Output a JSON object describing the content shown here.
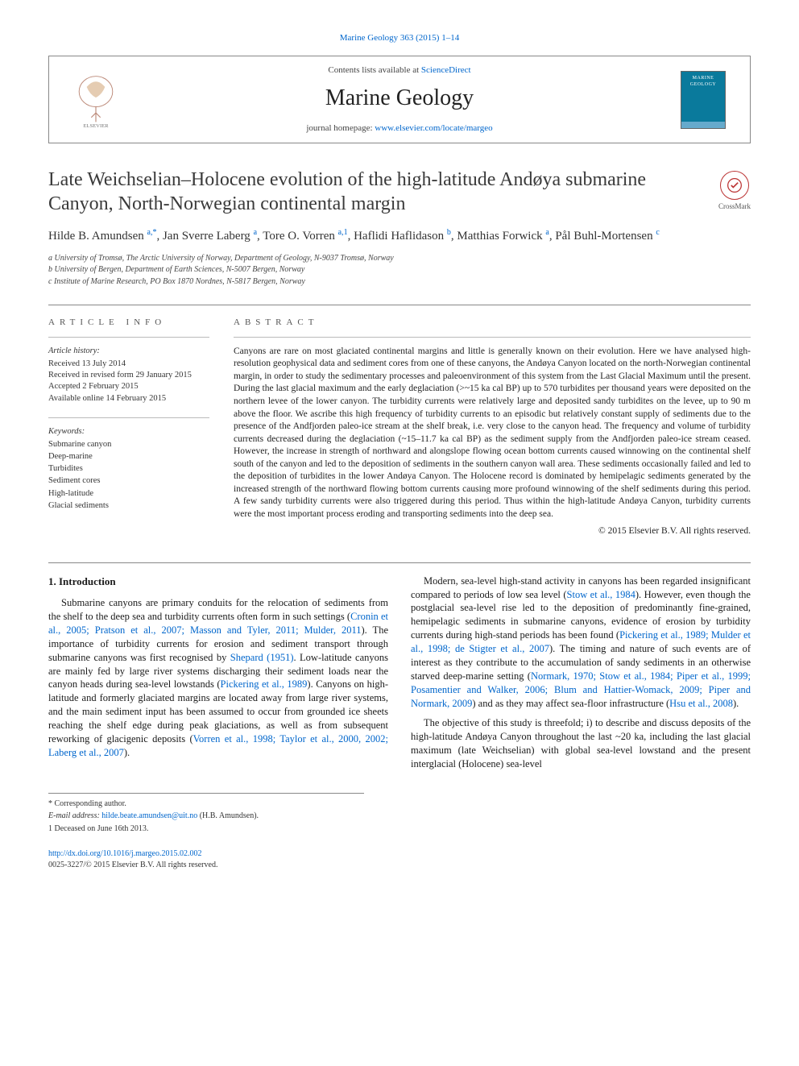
{
  "citation": "Marine Geology 363 (2015) 1–14",
  "header": {
    "contents_prefix": "Contents lists available at ",
    "contents_link": "ScienceDirect",
    "journal": "Marine Geology",
    "homepage_prefix": "journal homepage: ",
    "homepage_link": "www.elsevier.com/locate/margeo",
    "cover_text": "MARINE GEOLOGY"
  },
  "crossmark_label": "CrossMark",
  "title": "Late Weichselian–Holocene evolution of the high-latitude Andøya submarine Canyon, North-Norwegian continental margin",
  "authors_html_parts": [
    {
      "name": "Hilde B. Amundsen ",
      "sup": "a,*"
    },
    {
      "name": ", Jan Sverre Laberg ",
      "sup": "a"
    },
    {
      "name": ", Tore O. Vorren ",
      "sup": "a,1"
    },
    {
      "name": ", Haflidi Haflidason ",
      "sup": "b"
    },
    {
      "name": ", Matthias Forwick ",
      "sup": "a"
    },
    {
      "name": ", Pål Buhl-Mortensen ",
      "sup": "c"
    }
  ],
  "affiliations": [
    "a University of Tromsø, The Arctic University of Norway, Department of Geology, N-9037 Tromsø, Norway",
    "b University of Bergen, Department of Earth Sciences, N-5007 Bergen, Norway",
    "c Institute of Marine Research, PO Box 1870 Nordnes, N-5817 Bergen, Norway"
  ],
  "info": {
    "heading": "article info",
    "history_label": "Article history:",
    "history": [
      "Received 13 July 2014",
      "Received in revised form 29 January 2015",
      "Accepted 2 February 2015",
      "Available online 14 February 2015"
    ],
    "keywords_label": "Keywords:",
    "keywords": [
      "Submarine canyon",
      "Deep-marine",
      "Turbidites",
      "Sediment cores",
      "High-latitude",
      "Glacial sediments"
    ]
  },
  "abstract": {
    "heading": "abstract",
    "text": "Canyons are rare on most glaciated continental margins and little is generally known on their evolution. Here we have analysed high-resolution geophysical data and sediment cores from one of these canyons, the Andøya Canyon located on the north-Norwegian continental margin, in order to study the sedimentary processes and paleoenvironment of this system from the Last Glacial Maximum until the present. During the last glacial maximum and the early deglaciation (>~15 ka cal BP) up to 570 turbidites per thousand years were deposited on the northern levee of the lower canyon. The turbidity currents were relatively large and deposited sandy turbidites on the levee, up to 90 m above the floor. We ascribe this high frequency of turbidity currents to an episodic but relatively constant supply of sediments due to the presence of the Andfjorden paleo-ice stream at the shelf break, i.e. very close to the canyon head. The frequency and volume of turbidity currents decreased during the deglaciation (~15–11.7 ka cal BP) as the sediment supply from the Andfjorden paleo-ice stream ceased. However, the increase in strength of northward and alongslope flowing ocean bottom currents caused winnowing on the continental shelf south of the canyon and led to the deposition of sediments in the southern canyon wall area. These sediments occasionally failed and led to the deposition of turbidites in the lower Andøya Canyon. The Holocene record is dominated by hemipelagic sediments generated by the increased strength of the northward flowing bottom currents causing more profound winnowing of the shelf sediments during this period. A few sandy turbidity currents were also triggered during this period. Thus within the high-latitude Andøya Canyon, turbidity currents were the most important process eroding and transporting sediments into the deep sea.",
    "copyright": "© 2015 Elsevier B.V. All rights reserved."
  },
  "body": {
    "section_title": "1. Introduction",
    "p1_a": "Submarine canyons are primary conduits for the relocation of sediments from the shelf to the deep sea and turbidity currents often form in such settings (",
    "p1_link1": "Cronin et al., 2005; Pratson et al., 2007; Masson and Tyler, 2011; Mulder, 2011",
    "p1_b": "). The importance of turbidity currents for erosion and sediment transport through submarine canyons was first recognised by ",
    "p1_link2": "Shepard (1951)",
    "p1_c": ". Low-latitude canyons are mainly fed by large river systems discharging their sediment loads near the canyon heads during sea-level lowstands (",
    "p1_link3": "Pickering et al., 1989",
    "p1_d": "). Canyons on high-latitude and formerly glaciated margins are located away from large river systems, and the main sediment input has been assumed to occur from grounded ice sheets reaching the shelf edge during peak glaciations, as well as from subsequent reworking of glacigenic deposits (",
    "p1_link4": "Vorren et al., 1998; Taylor et al., 2000, 2002; Laberg et al., 2007",
    "p1_e": ").",
    "p2_a": "Modern, sea-level high-stand activity in canyons has been regarded insignificant compared to periods of low sea level (",
    "p2_link1": "Stow et al., 1984",
    "p2_b": "). However, even though the postglacial sea-level rise led to the deposition of predominantly fine-grained, hemipelagic sediments in submarine canyons, evidence of erosion by turbidity currents during high-stand periods has been found (",
    "p2_link2": "Pickering et al., 1989; Mulder et al., 1998; de Stigter et al., 2007",
    "p2_c": "). The timing and nature of such events are of interest as they contribute to the accumulation of sandy sediments in an otherwise starved deep-marine setting (",
    "p2_link3": "Normark, 1970; Stow et al., 1984; Piper et al., 1999; Posamentier and Walker, 2006; Blum and Hattier-Womack, 2009; Piper and Normark, 2009",
    "p2_d": ") and as they may affect sea-floor infrastructure (",
    "p2_link4": "Hsu et al., 2008",
    "p2_e": ").",
    "p3": "The objective of this study is threefold; i) to describe and discuss deposits of the high-latitude Andøya Canyon throughout the last ~20 ka, including the last glacial maximum (late Weichselian) with global sea-level lowstand and the present interglacial (Holocene) sea-level"
  },
  "footnotes": {
    "corr": "* Corresponding author.",
    "email_label": "E-mail address: ",
    "email": "hilde.beate.amundsen@uit.no",
    "email_suffix": " (H.B. Amundsen).",
    "note1": "1 Deceased on June 16th 2013."
  },
  "footer": {
    "doi": "http://dx.doi.org/10.1016/j.margeo.2015.02.002",
    "issn_line": "0025-3227/© 2015 Elsevier B.V. All rights reserved."
  },
  "colors": {
    "link": "#0066cc",
    "rule": "#888888",
    "cover_bg": "#0a7a9c"
  }
}
